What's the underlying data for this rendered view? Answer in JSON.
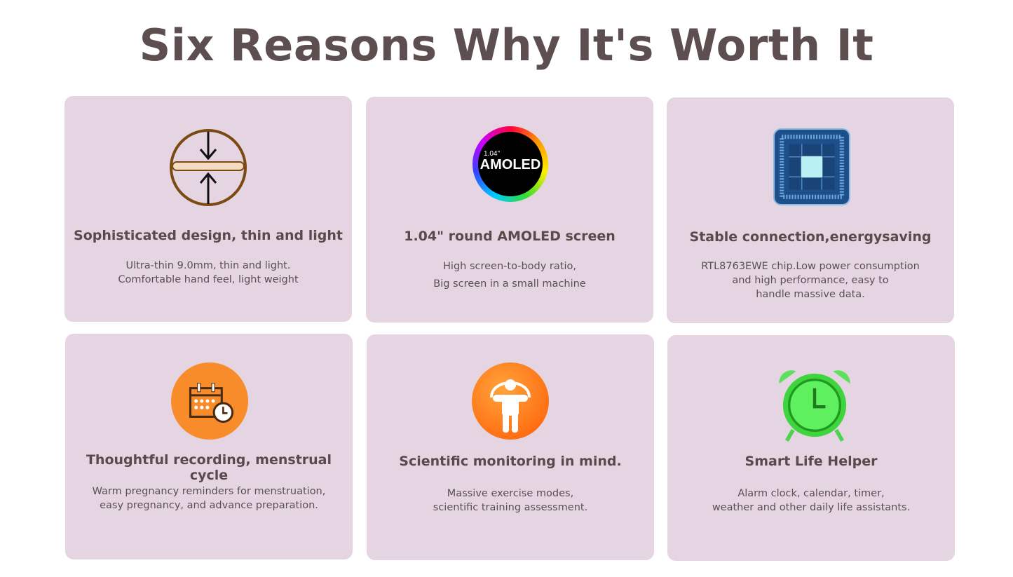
{
  "title": "Six Reasons Why It's Worth It",
  "cards": [
    {
      "title": "Sophisticated design, thin and light",
      "lines": [
        "Ultra-thin 9.0mm, thin and light.",
        "Comfortable hand feel, light weight"
      ]
    },
    {
      "icon_label": {
        "size": "1.04\"",
        "name": "AMOLED"
      },
      "title": "1.04\" round AMOLED screen",
      "lines": [
        "High screen-to-body ratio,",
        "Big screen in a small machine"
      ]
    },
    {
      "title": "Stable connection,energysaving",
      "lines": [
        "RTL8763EWE chip.Low power consumption",
        "and high performance, easy to",
        "handle massive data."
      ]
    },
    {
      "title": "Thoughtful recording, menstrual cycle",
      "lines": [
        "Warm pregnancy reminders for menstruation,",
        "easy pregnancy, and advance preparation."
      ]
    },
    {
      "title": "Scientific monitoring in mind.",
      "lines": [
        "Massive exercise modes,",
        "scientific training assessment."
      ]
    },
    {
      "title": "Smart Life Helper",
      "lines": [
        "Alarm clock, calendar, timer,",
        "weather and other daily life assistants."
      ]
    }
  ]
}
